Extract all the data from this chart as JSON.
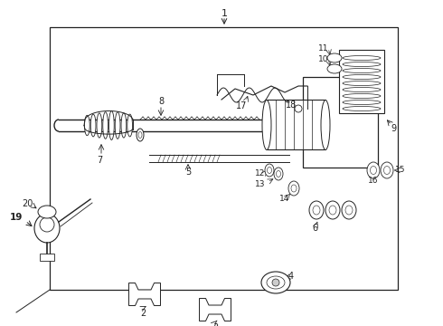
{
  "bg_color": "#ffffff",
  "line_color": "#222222",
  "figsize": [
    4.9,
    3.6
  ],
  "dpi": 100,
  "xlim": [
    0,
    490
  ],
  "ylim": [
    0,
    360
  ]
}
